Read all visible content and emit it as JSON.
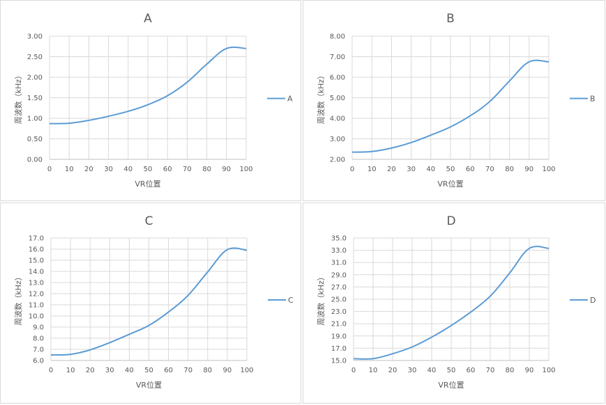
{
  "chart_data": [
    {
      "type": "line",
      "title": "A",
      "xlabel": "VR位置",
      "ylabel": "周波数（kHz）",
      "xlim": [
        0,
        100
      ],
      "ylim": [
        0,
        3
      ],
      "xticks": [
        "0",
        "10",
        "20",
        "30",
        "40",
        "50",
        "60",
        "70",
        "80",
        "90",
        "100"
      ],
      "yticks": [
        "0.00",
        "0.50",
        "1.00",
        "1.50",
        "2.00",
        "2.50",
        "3.00"
      ],
      "grid": true,
      "legend_position": "right",
      "color": "#5b9bd5",
      "series": [
        {
          "name": "A",
          "x": [
            0,
            10,
            20,
            30,
            40,
            50,
            60,
            70,
            80,
            90,
            100
          ],
          "values": [
            0.87,
            0.88,
            0.95,
            1.05,
            1.17,
            1.33,
            1.55,
            1.88,
            2.32,
            2.7,
            2.7
          ]
        }
      ]
    },
    {
      "type": "line",
      "title": "B",
      "xlabel": "VR位置",
      "ylabel": "周波数（kHz）",
      "xlim": [
        0,
        100
      ],
      "ylim": [
        2,
        8
      ],
      "xticks": [
        "0",
        "10",
        "20",
        "30",
        "40",
        "50",
        "60",
        "70",
        "80",
        "90",
        "100"
      ],
      "yticks": [
        "2.00",
        "3.00",
        "4.00",
        "5.00",
        "6.00",
        "7.00",
        "8.00"
      ],
      "grid": true,
      "legend_position": "right",
      "color": "#5b9bd5",
      "series": [
        {
          "name": "B",
          "x": [
            0,
            10,
            20,
            30,
            40,
            50,
            60,
            70,
            80,
            90,
            100
          ],
          "values": [
            2.35,
            2.38,
            2.55,
            2.82,
            3.18,
            3.58,
            4.12,
            4.82,
            5.82,
            6.75,
            6.75
          ]
        }
      ]
    },
    {
      "type": "line",
      "title": "C",
      "xlabel": "VR位置",
      "ylabel": "周波数（kHz）",
      "xlim": [
        0,
        100
      ],
      "ylim": [
        6,
        17
      ],
      "xticks": [
        "0",
        "10",
        "20",
        "30",
        "40",
        "50",
        "60",
        "70",
        "80",
        "90",
        "100"
      ],
      "yticks": [
        "6.0",
        "7.0",
        "8.0",
        "9.0",
        "10.0",
        "11.0",
        "12.0",
        "13.0",
        "14.0",
        "15.0",
        "16.0",
        "17.0"
      ],
      "grid": true,
      "legend_position": "right",
      "color": "#5b9bd5",
      "series": [
        {
          "name": "C",
          "x": [
            0,
            10,
            20,
            30,
            40,
            50,
            60,
            70,
            80,
            90,
            100
          ],
          "values": [
            6.5,
            6.55,
            6.95,
            7.6,
            8.35,
            9.15,
            10.35,
            11.85,
            13.95,
            15.95,
            15.9
          ]
        }
      ]
    },
    {
      "type": "line",
      "title": "D",
      "xlabel": "VR位置",
      "ylabel": "周波数（kHz）",
      "xlim": [
        0,
        100
      ],
      "ylim": [
        15,
        35
      ],
      "xticks": [
        "0",
        "10",
        "20",
        "30",
        "40",
        "50",
        "60",
        "70",
        "80",
        "90",
        "100"
      ],
      "yticks": [
        "15.0",
        "17.0",
        "19.0",
        "21.0",
        "23.0",
        "25.0",
        "27.0",
        "29.0",
        "31.0",
        "33.0",
        "35.0"
      ],
      "grid": true,
      "legend_position": "right",
      "color": "#5b9bd5",
      "series": [
        {
          "name": "D",
          "x": [
            0,
            10,
            20,
            30,
            40,
            50,
            60,
            70,
            80,
            90,
            100
          ],
          "values": [
            15.3,
            15.3,
            16.1,
            17.2,
            18.8,
            20.7,
            22.9,
            25.5,
            29.3,
            33.3,
            33.3
          ]
        }
      ]
    }
  ]
}
